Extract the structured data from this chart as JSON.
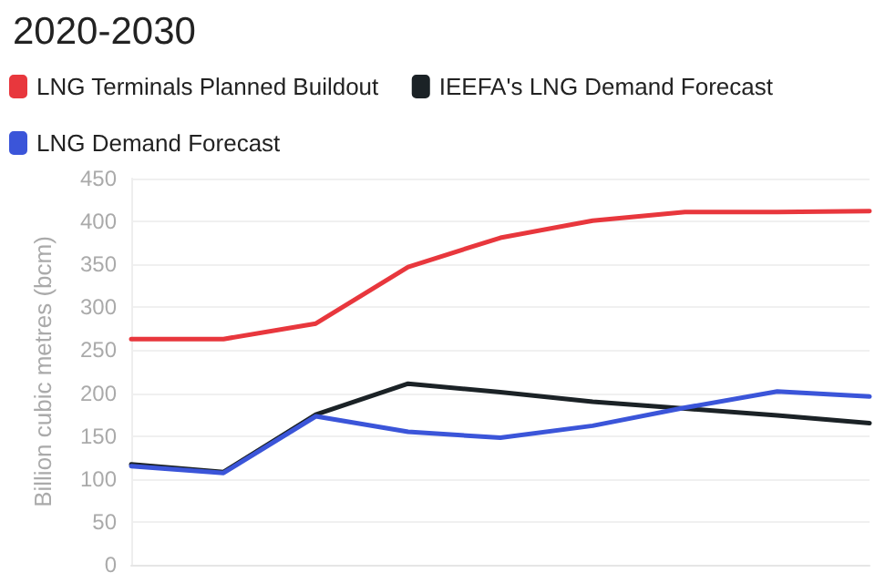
{
  "chart_data": {
    "type": "line",
    "title": "2020-2030",
    "ylabel": "Billion cubic metres (bcm)",
    "categories": [
      null,
      null,
      null,
      null,
      null,
      null,
      null,
      null,
      null
    ],
    "series": [
      {
        "name": "LNG Terminals Planned Buildout",
        "color": "#e8373d",
        "values": [
          263,
          263,
          281,
          347,
          381,
          401,
          411,
          411,
          412
        ]
      },
      {
        "name": "IEEFA's LNG Demand Forecast",
        "color": "#1b2226",
        "values": [
          117,
          108,
          175,
          211,
          201,
          190,
          182,
          174,
          165
        ]
      },
      {
        "name": "LNG Demand Forecast",
        "color": "#3b55d9",
        "values": [
          115,
          107,
          173,
          155,
          148,
          162,
          183,
          202,
          196
        ]
      }
    ],
    "ylim": [
      0,
      450
    ],
    "yticks": [
      0,
      50,
      100,
      150,
      200,
      250,
      300,
      350,
      400,
      450
    ],
    "grid": "y",
    "legend": "top left",
    "marker": "none",
    "line_style": "solid"
  }
}
